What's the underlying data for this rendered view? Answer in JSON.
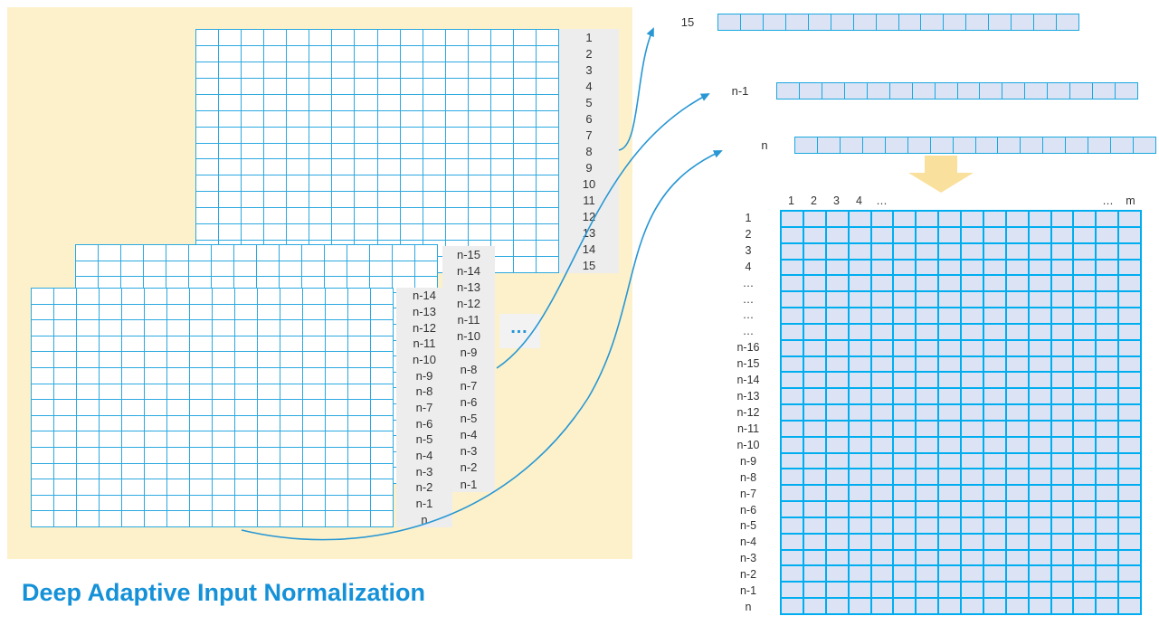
{
  "title": "Deep Adaptive Input Normalization",
  "colors": {
    "panel-yellow": "#FCF1CB",
    "grid-line": "#2BA9E0",
    "strip-line": "#18A8E0",
    "grid-fill": "#FFFFFF",
    "matrix-line": "#00AEEF",
    "matrix-fill": "#DCE3F4",
    "label-col-bg": "#EDEDED",
    "label-text": "#333333",
    "arrow-blue": "#2897D4",
    "down-arrow-yellow": "#F9E09C",
    "title-blue": "#1591D8",
    "dots-blue": "#2196D8",
    "dots-box-bg": "#F2F2F2"
  },
  "left_panel": {
    "dots": "…",
    "top_grid": {
      "grid": {
        "cols": 16,
        "rows": 15
      },
      "labels": [
        "1",
        "2",
        "3",
        "4",
        "5",
        "6",
        "7",
        "8",
        "9",
        "10",
        "11",
        "12",
        "13",
        "14",
        "15"
      ]
    },
    "middle_grid": {
      "grid": {
        "cols": 16,
        "rows": 15
      },
      "labels": [
        "n-15",
        "n-14",
        "n-13",
        "n-12",
        "n-11",
        "n-10",
        "n-9",
        "n-8",
        "n-7",
        "n-6",
        "n-5",
        "n-4",
        "n-3",
        "n-2",
        "n-1"
      ]
    },
    "front_grid": {
      "grid": {
        "cols": 16,
        "rows": 15
      },
      "labels": [
        "n-14",
        "n-13",
        "n-12",
        "n-11",
        "n-10",
        "n-9",
        "n-8",
        "n-7",
        "n-6",
        "n-5",
        "n-4",
        "n-3",
        "n-2",
        "n-1",
        "n"
      ]
    }
  },
  "vectors": [
    {
      "label": "15",
      "grid": {
        "cols": 16,
        "rows": 1
      }
    },
    {
      "label": "n-1",
      "grid": {
        "cols": 16,
        "rows": 1
      }
    },
    {
      "label": "n",
      "grid": {
        "cols": 16,
        "rows": 1
      }
    }
  ],
  "matrix": {
    "grid": {
      "cols": 16,
      "rows": 25
    },
    "col_headers": [
      "1",
      "2",
      "3",
      "4",
      "…",
      "",
      "",
      "",
      "",
      "",
      "",
      "",
      "",
      "",
      "…",
      "m"
    ],
    "row_labels": [
      "1",
      "2",
      "3",
      "4",
      "…",
      "…",
      "…",
      "…",
      "n-16",
      "n-15",
      "n-14",
      "n-13",
      "n-12",
      "n-11",
      "n-10",
      "n-9",
      "n-8",
      "n-7",
      "n-6",
      "n-5",
      "n-4",
      "n-3",
      "n-2",
      "n-1",
      "n"
    ]
  }
}
